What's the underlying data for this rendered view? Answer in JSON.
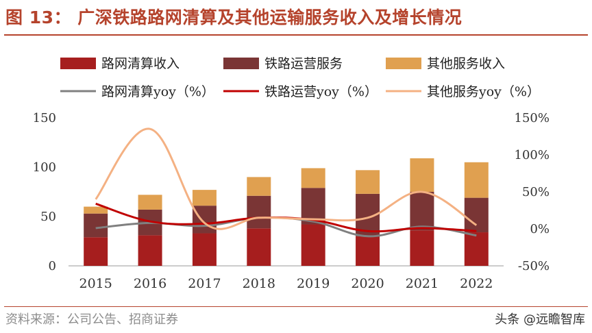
{
  "header": {
    "title": "图 13：  广深铁路路网清算及其他运输服务收入及增长情况"
  },
  "footer": {
    "source": "资料来源：公司公告、招商证券",
    "watermark": "头条 @远瞻智库"
  },
  "colors": {
    "title": "#B5432C",
    "bar_qingsuan": "#A61E1E",
    "bar_yunying": "#7A3535",
    "bar_qita": "#E0A050",
    "line_qingsuan": "#808080",
    "line_yunying": "#C00000",
    "line_qita": "#F4B183"
  },
  "chart_data": {
    "type": "bar",
    "categories": [
      "2015",
      "2016",
      "2017",
      "2018",
      "2019",
      "2020",
      "2021",
      "2022"
    ],
    "series": [
      {
        "name": "路网清算收入",
        "kind": "bar",
        "axis": "left",
        "values": [
          29,
          31,
          33,
          38,
          42,
          30,
          36,
          34
        ]
      },
      {
        "name": "铁路运营服务",
        "kind": "bar",
        "axis": "left",
        "values": [
          24,
          26,
          28,
          33,
          37,
          43,
          39,
          35
        ]
      },
      {
        "name": "其他服务收入",
        "kind": "bar",
        "axis": "left",
        "values": [
          7,
          15,
          16,
          19,
          20,
          24,
          34,
          36
        ]
      },
      {
        "name": "路网清算yoy（%）",
        "kind": "line",
        "axis": "right",
        "values": [
          1,
          8,
          4,
          15,
          10,
          -10,
          3,
          -9
        ]
      },
      {
        "name": "铁路运营yoy（%）",
        "kind": "line",
        "axis": "right",
        "values": [
          34,
          10,
          7,
          15,
          12,
          -3,
          1,
          -3
        ]
      },
      {
        "name": "其他服务yoy（%）",
        "kind": "line",
        "axis": "right",
        "values": [
          40,
          135,
          8,
          15,
          13,
          15,
          50,
          5
        ]
      }
    ],
    "left_axis": {
      "ylim": [
        0,
        150
      ],
      "ticks": [
        "0",
        "50",
        "100",
        "150"
      ]
    },
    "right_axis": {
      "ylim": [
        -50,
        150
      ],
      "ticks": [
        "-50%",
        "0%",
        "50%",
        "100%",
        "150%"
      ]
    },
    "legend_position": "top"
  }
}
